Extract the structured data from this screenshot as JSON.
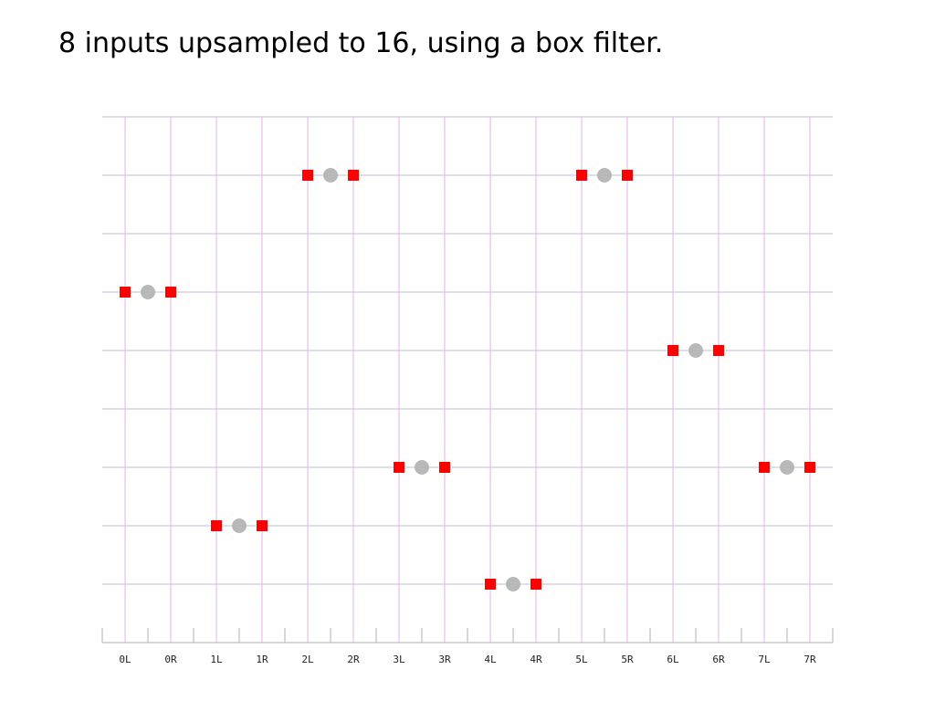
{
  "title": "8 inputs upsampled to 16, using a box filter.",
  "colors": {
    "grid_horizontal": "#c0bcd0",
    "grid_vertical": "#e0b4e6",
    "axis": "#b0b0b0",
    "output_marker": "#ff0000",
    "input_marker": "#b8b8b8"
  },
  "chart_data": {
    "type": "scatter",
    "title": "8 inputs upsampled to 16, using a box filter.",
    "xlabel": "",
    "ylabel": "",
    "x_tick_labels": [
      "0L",
      "0R",
      "1L",
      "1R",
      "2L",
      "2R",
      "3L",
      "3R",
      "4L",
      "4R",
      "5L",
      "5R",
      "6L",
      "6R",
      "7L",
      "7R"
    ],
    "xlim": [
      -0.5,
      15.5
    ],
    "ylim": [
      0,
      9
    ],
    "grid": true,
    "input_samples": {
      "marker": "circle",
      "x": [
        0.5,
        2.5,
        4.5,
        6.5,
        8.5,
        10.5,
        12.5,
        14.5
      ],
      "y": [
        6,
        2,
        8,
        3,
        1,
        8,
        5,
        3
      ]
    },
    "output_samples": {
      "marker": "square",
      "x": [
        0,
        1,
        2,
        3,
        4,
        5,
        6,
        7,
        8,
        9,
        10,
        11,
        12,
        13,
        14,
        15
      ],
      "y": [
        6,
        6,
        2,
        2,
        8,
        8,
        3,
        3,
        1,
        1,
        8,
        8,
        5,
        5,
        3,
        3
      ]
    }
  }
}
